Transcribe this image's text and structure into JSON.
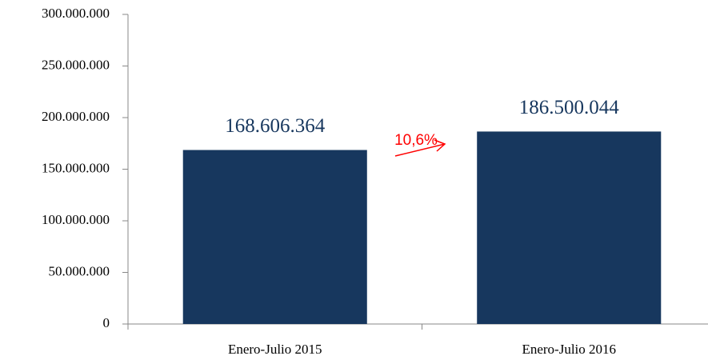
{
  "chart_data": {
    "type": "bar",
    "categories": [
      "Enero-Julio 2015",
      "Enero-Julio 2016"
    ],
    "values": [
      168606364,
      186500044
    ],
    "value_labels": [
      "168.606.364",
      "186.500.044"
    ],
    "color": "#17375e",
    "ylim": [
      0,
      300000000
    ],
    "yticks": [
      0,
      {
        "value": 50000000,
        "label": "50.000.000"
      },
      {
        "value": 100000000,
        "label": "100.000.000"
      },
      {
        "value": 150000000,
        "label": "150.000.000"
      },
      {
        "value": 200000000,
        "label": "200.000.000"
      },
      {
        "value": 250000000,
        "label": "250.000.000"
      },
      {
        "value": 300000000,
        "label": "300.000.000"
      }
    ],
    "annotation": "10,6%"
  }
}
